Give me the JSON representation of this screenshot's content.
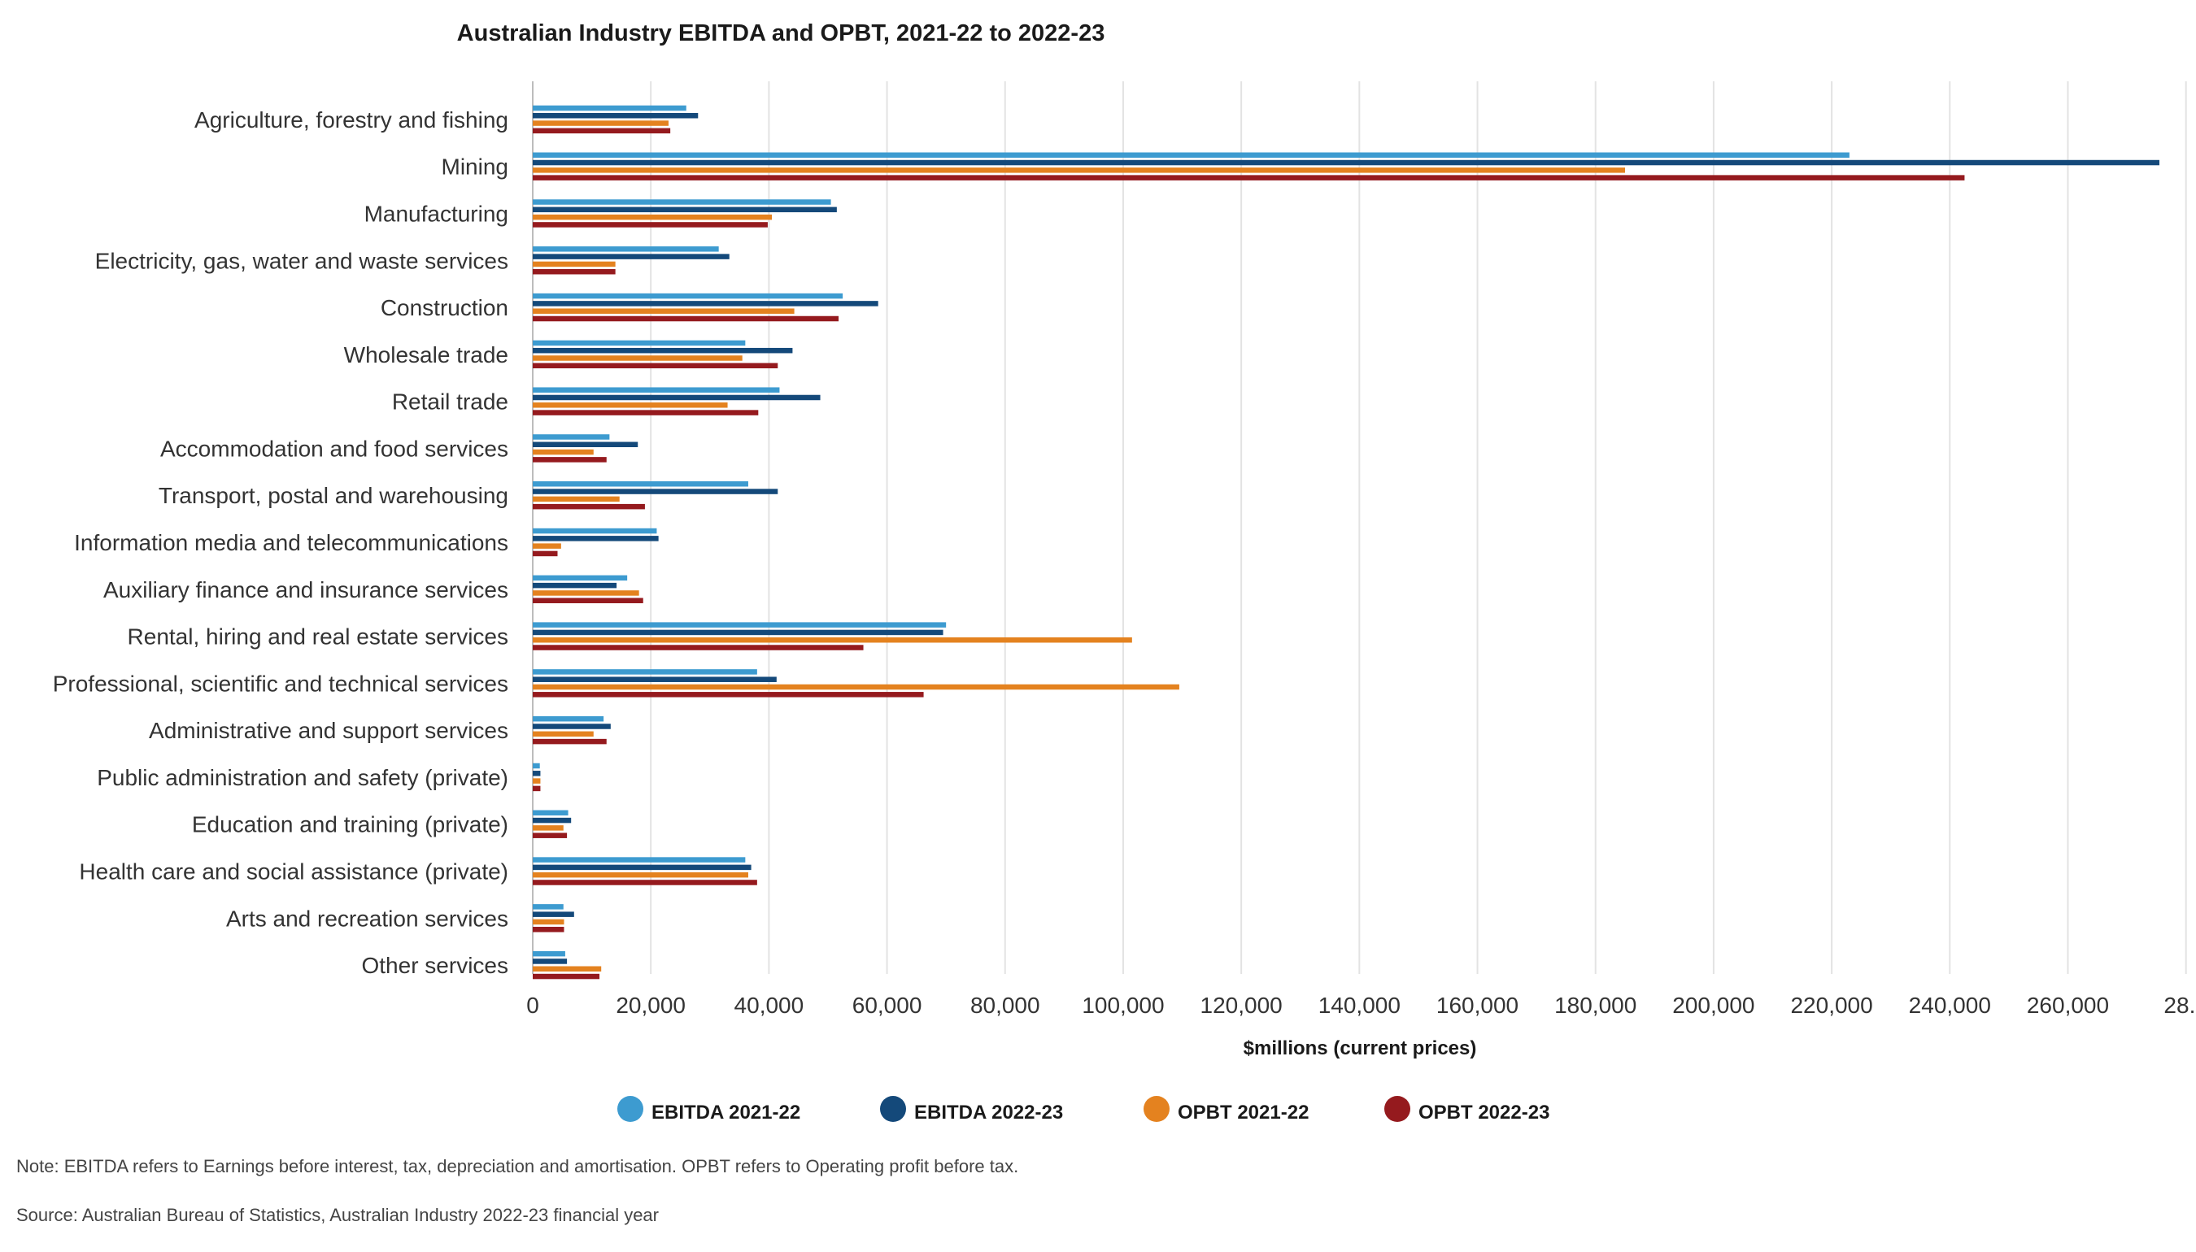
{
  "chart_data": {
    "type": "bar",
    "orientation": "horizontal",
    "title": "Australian Industry EBITDA and OPBT, 2021-22 to 2022-23",
    "xlabel": "$millions (current prices)",
    "ylabel": "",
    "xlim": [
      0,
      280000
    ],
    "x_ticks": [
      "0",
      "20,000",
      "40,000",
      "60,000",
      "80,000",
      "100,000",
      "120,000",
      "140,000",
      "160,000",
      "180,000",
      "200,000",
      "220,000",
      "240,000",
      "260,000",
      "28..."
    ],
    "grid": "vertical",
    "legend_position": "bottom",
    "categories": [
      "Agriculture, forestry and fishing",
      "Mining",
      "Manufacturing",
      "Electricity, gas, water and waste services",
      "Construction",
      "Wholesale trade",
      "Retail trade",
      "Accommodation and food services",
      "Transport, postal and warehousing",
      "Information media and telecommunications",
      "Auxiliary finance and insurance services",
      "Rental, hiring and real estate services",
      "Professional, scientific and technical services",
      "Administrative and support services",
      "Public administration and safety (private)",
      "Education and training (private)",
      "Health care and social assistance (private)",
      "Arts and recreation services",
      "Other services"
    ],
    "series": [
      {
        "name": "EBITDA 2021-22",
        "color": "#3d9bd0",
        "values": [
          26000,
          223000,
          50500,
          31500,
          52500,
          36000,
          41800,
          13000,
          36500,
          21000,
          16000,
          70000,
          38000,
          12000,
          1200,
          6000,
          36000,
          5200,
          5500
        ]
      },
      {
        "name": "EBITDA 2022-23",
        "color": "#14497a",
        "values": [
          28000,
          275500,
          51500,
          33300,
          58500,
          44000,
          48700,
          17800,
          41500,
          21300,
          14200,
          69500,
          41300,
          13200,
          1300,
          6500,
          37000,
          7000,
          5800
        ]
      },
      {
        "name": "OPBT 2021-22",
        "color": "#e4821f",
        "values": [
          23000,
          185000,
          40500,
          14000,
          44300,
          35500,
          33000,
          10300,
          14700,
          4800,
          18000,
          101500,
          109500,
          10300,
          1300,
          5200,
          36500,
          5300,
          11600
        ]
      },
      {
        "name": "OPBT 2022-23",
        "color": "#951a1e",
        "values": [
          23300,
          242500,
          39800,
          14000,
          51800,
          41500,
          38200,
          12500,
          19000,
          4200,
          18700,
          56000,
          66200,
          12500,
          1300,
          5800,
          38000,
          5300,
          11300
        ]
      }
    ]
  },
  "notes": {
    "note": "Note: EBITDA refers to Earnings before interest, tax, depreciation and amortisation. OPBT refers to Operating profit before tax.",
    "source": "Source: Australian Bureau of Statistics, Australian Industry 2022-23 financial year"
  }
}
